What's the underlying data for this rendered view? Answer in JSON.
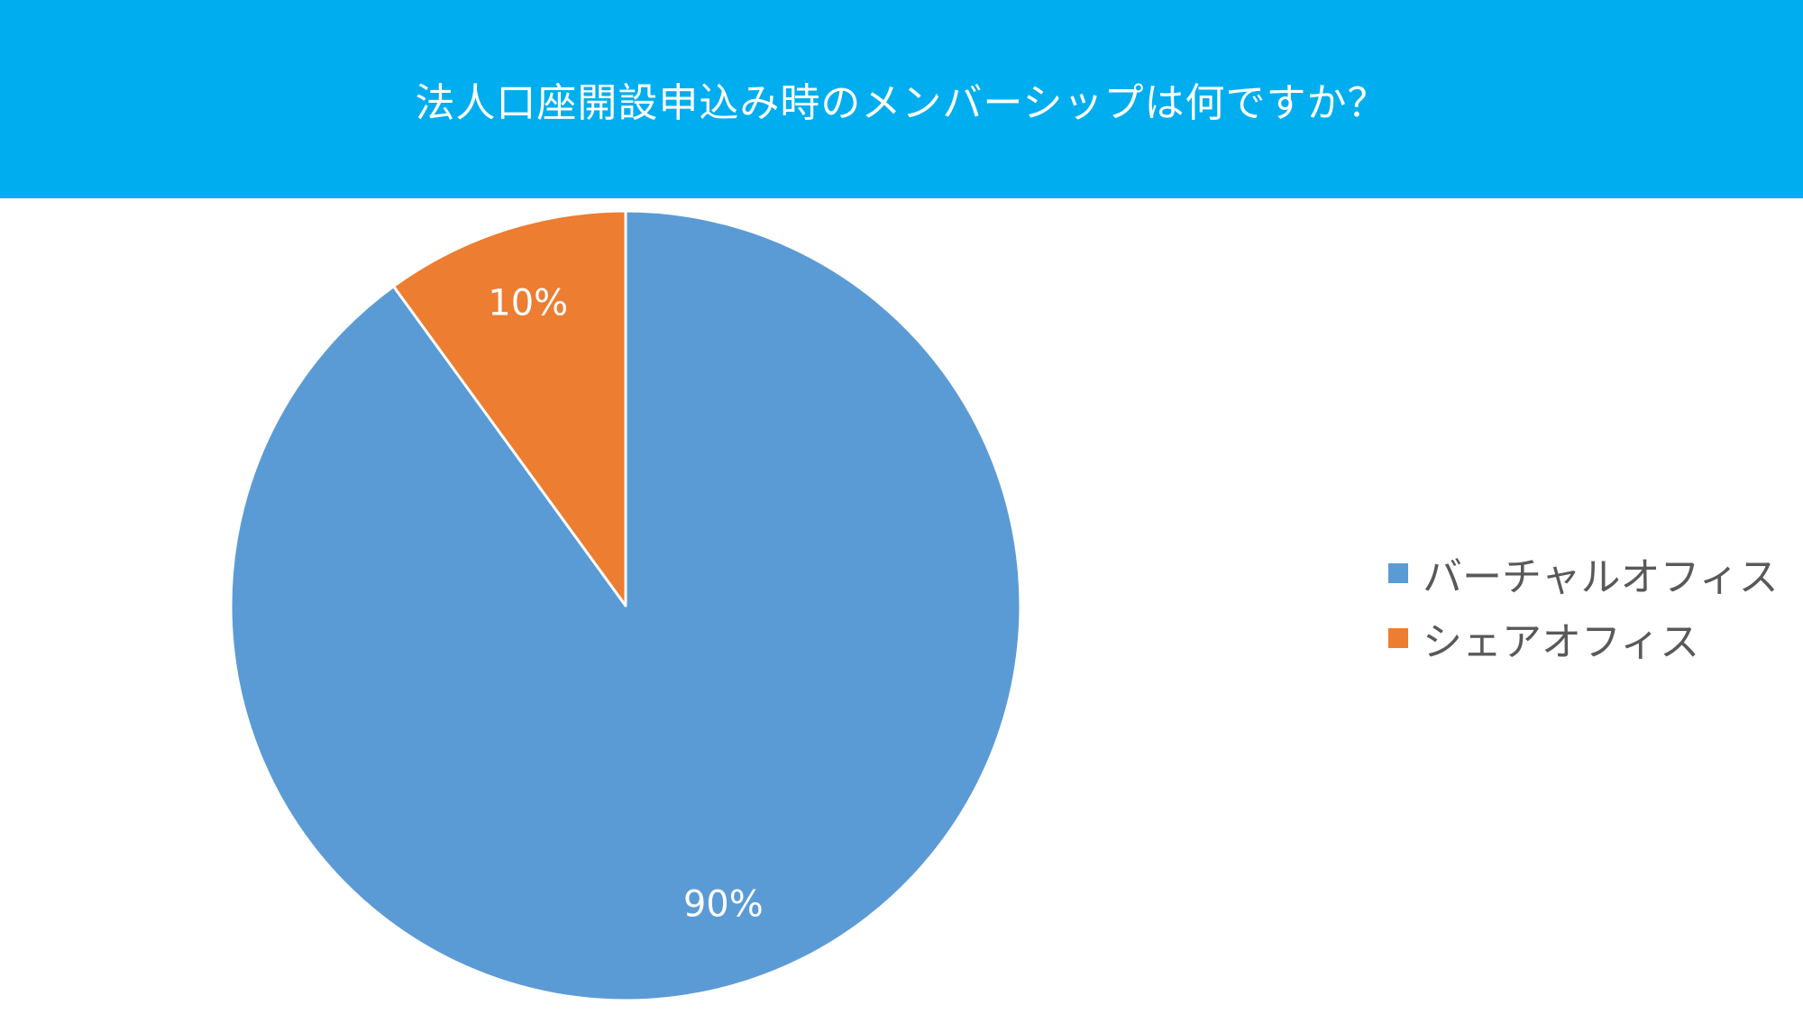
{
  "header": {
    "title": "法人口座開設申込み時のメンバーシップは何ですか？",
    "background": "#00AEEF"
  },
  "chart_data": {
    "type": "pie",
    "title": "法人口座開設申込み時のメンバーシップは何ですか？",
    "categories": [
      "バーチャルオフィス",
      "シェアオフィス"
    ],
    "values": [
      90,
      10
    ],
    "data_labels": [
      "90%",
      "10%"
    ],
    "colors": [
      "#5B9BD5",
      "#ED7D31"
    ],
    "start_angle_deg": 0,
    "direction": "clockwise",
    "legend_position": "right"
  },
  "legend": {
    "items": [
      {
        "label": "バーチャルオフィス",
        "color": "#5B9BD5"
      },
      {
        "label": "シェアオフィス",
        "color": "#ED7D31"
      }
    ]
  }
}
